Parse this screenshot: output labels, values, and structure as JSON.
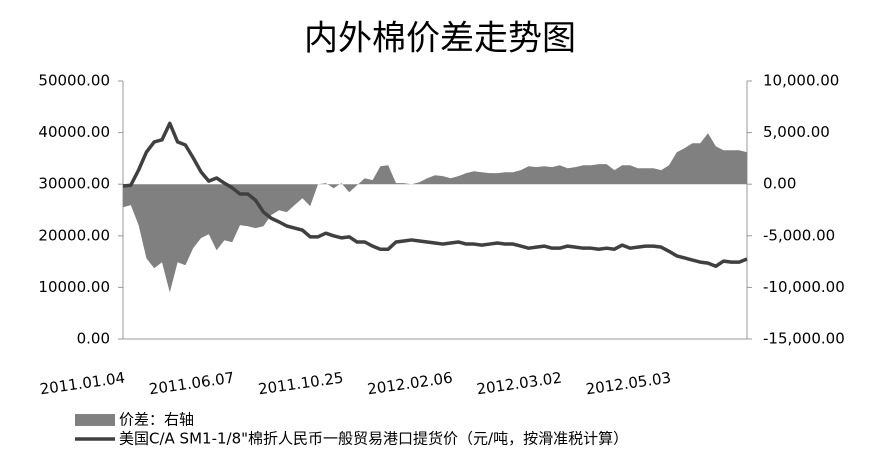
{
  "chart_data": {
    "type": "area-line",
    "title": "内外棉价差走势图",
    "categories": [
      "2011.01.04",
      null,
      null,
      null,
      null,
      null,
      null,
      null,
      null,
      null,
      null,
      null,
      null,
      null,
      "2011.06.07",
      null,
      null,
      null,
      null,
      null,
      null,
      null,
      null,
      null,
      null,
      null,
      null,
      null,
      "2011.10.25",
      null,
      null,
      null,
      null,
      null,
      null,
      null,
      null,
      null,
      null,
      null,
      null,
      null,
      "2012.02.06",
      null,
      null,
      null,
      null,
      null,
      null,
      null,
      null,
      null,
      null,
      null,
      null,
      null,
      "2012.03.02",
      null,
      null,
      null,
      null,
      null,
      null,
      null,
      null,
      null,
      null,
      null,
      null,
      null,
      "2012.05.03",
      null,
      null,
      null,
      null,
      null,
      null,
      null,
      null,
      null,
      null
    ],
    "series": [
      {
        "name": "价差：右轴",
        "color": "#808080",
        "axis": "y2",
        "kind": "area",
        "values": [
          -2230,
          -2030,
          -3970,
          -7170,
          -8140,
          -7560,
          -10500,
          -7560,
          -7850,
          -6200,
          -5230,
          -4850,
          -6400,
          -5430,
          -5620,
          -3970,
          -4070,
          -4260,
          -4070,
          -3000,
          -2520,
          -2710,
          -2030,
          -1360,
          -2130,
          0,
          100,
          -390,
          100,
          -780,
          -100,
          580,
          390,
          1740,
          1840,
          100,
          100,
          0,
          190,
          580,
          870,
          780,
          580,
          780,
          1070,
          1260,
          1160,
          1070,
          1070,
          1160,
          1160,
          1360,
          1740,
          1650,
          1740,
          1650,
          1840,
          1550,
          1650,
          1840,
          1840,
          1940,
          1940,
          1360,
          1840,
          1840,
          1550,
          1550,
          1550,
          1360,
          1840,
          3100,
          3490,
          3970,
          3970,
          4940,
          3680,
          3290,
          3290,
          3290,
          3100
        ]
      },
      {
        "name": "美国C/A SM1-1/8\"棉折人民币一般贸易港口提货价（元/吨，按滑准税计算）",
        "color": "#404040",
        "kind": "line",
        "values": [
          29650,
          29800,
          32750,
          36200,
          38200,
          38600,
          41800,
          38200,
          37600,
          35100,
          32400,
          30600,
          31200,
          30200,
          29300,
          28100,
          28100,
          26900,
          24600,
          23400,
          22700,
          21900,
          21500,
          21100,
          19800,
          19800,
          20500,
          20000,
          19600,
          19800,
          18800,
          18800,
          18000,
          17400,
          17400,
          18800,
          19000,
          19200,
          19000,
          18800,
          18600,
          18400,
          18600,
          18800,
          18400,
          18400,
          18200,
          18400,
          18600,
          18400,
          18400,
          18000,
          17600,
          17800,
          18000,
          17600,
          17600,
          18000,
          17800,
          17600,
          17600,
          17400,
          17600,
          17400,
          18200,
          17600,
          17800,
          18000,
          18000,
          17800,
          17000,
          16100,
          15700,
          15300,
          14900,
          14700,
          14100,
          15100,
          14900,
          14900,
          15500
        ]
      }
    ],
    "ylim": [
      0,
      50000
    ],
    "yticks": [
      {
        "value": 0,
        "label": "0.00"
      },
      {
        "value": 10000,
        "label": "10000.00"
      },
      {
        "value": 20000,
        "label": "20000.00"
      },
      {
        "value": 30000,
        "label": "30000.00"
      },
      {
        "value": 40000,
        "label": "40000.00"
      },
      {
        "value": 50000,
        "label": "50000.00"
      }
    ],
    "y2lim": [
      -15000,
      10000
    ],
    "y2ticks": [
      {
        "value": -15000,
        "label": "-15,000.00"
      },
      {
        "value": -10000,
        "label": "-10,000.00"
      },
      {
        "value": -5000,
        "label": "-5,000.00"
      },
      {
        "value": 0,
        "label": "0.00"
      },
      {
        "value": 5000,
        "label": "5,000.00"
      },
      {
        "value": 10000,
        "label": "10,000.00"
      }
    ],
    "grid": false,
    "legend": "bottom"
  }
}
